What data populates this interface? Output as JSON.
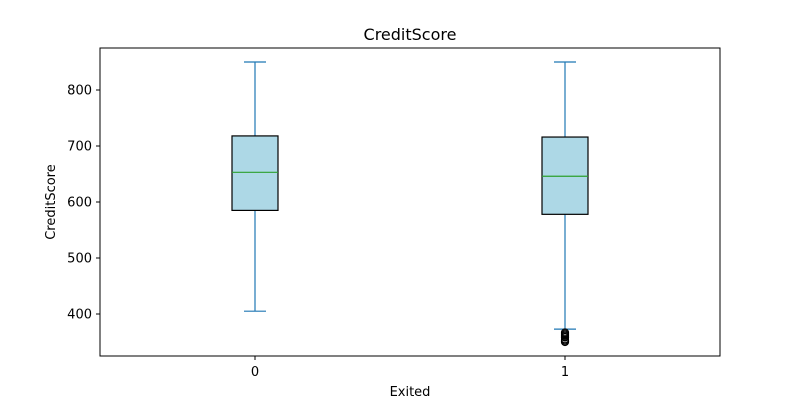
{
  "chart_data": {
    "type": "box",
    "title": "CreditScore",
    "xlabel": "Exited",
    "ylabel": "CreditScore",
    "categories": [
      "0",
      "1"
    ],
    "ylim": [
      325,
      875
    ],
    "yticks": [
      400,
      500,
      600,
      700,
      800
    ],
    "grid": false,
    "legend": "none",
    "boxes": [
      {
        "category": "0",
        "whisker_low": 405,
        "q1": 585,
        "median": 653,
        "q3": 718,
        "whisker_high": 850,
        "outliers": []
      },
      {
        "category": "1",
        "whisker_low": 373,
        "q1": 578,
        "median": 646,
        "q3": 716,
        "whisker_high": 850,
        "outliers": [
          350,
          351,
          353,
          355,
          358,
          359,
          361,
          363,
          365,
          367
        ]
      }
    ],
    "colors": {
      "box_fill": "#add8e6",
      "box_edge": "#000000",
      "whisker": "#1f77b4",
      "median": "#2ca02c",
      "outlier_edge": "#000000"
    }
  }
}
